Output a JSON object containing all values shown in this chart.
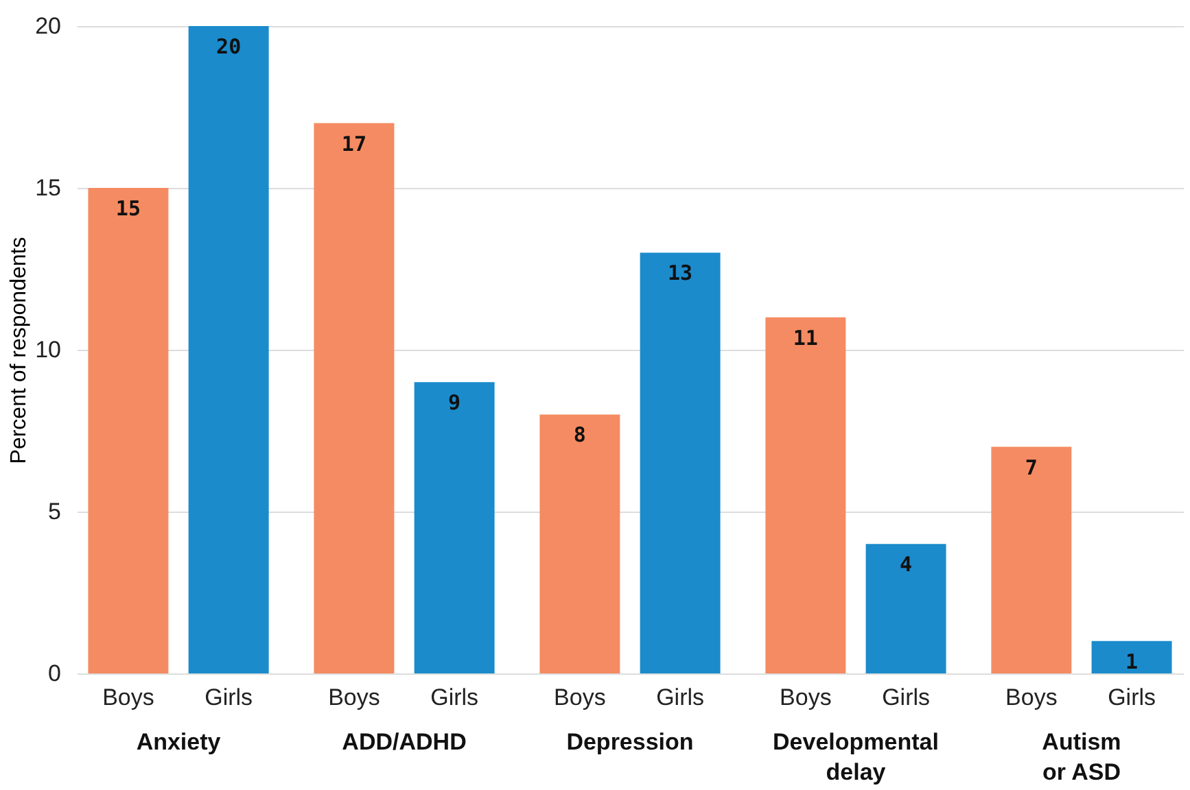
{
  "chart_data": {
    "type": "bar",
    "ylabel": "Percent of respondents",
    "categories": [
      "Anxiety",
      "ADD/ADHD",
      "Depression",
      "Developmental delay",
      "Autism or ASD"
    ],
    "series": [
      {
        "name": "Boys",
        "color": "#f58b62",
        "values": [
          15,
          17,
          8,
          11,
          7
        ]
      },
      {
        "name": "Girls",
        "color": "#1b8bcc",
        "values": [
          20,
          9,
          13,
          4,
          1
        ]
      }
    ],
    "ylim": [
      0,
      20
    ],
    "yticks": [
      0,
      5,
      10,
      15,
      20
    ],
    "grid": "y",
    "data_labels": true,
    "legend": false
  }
}
